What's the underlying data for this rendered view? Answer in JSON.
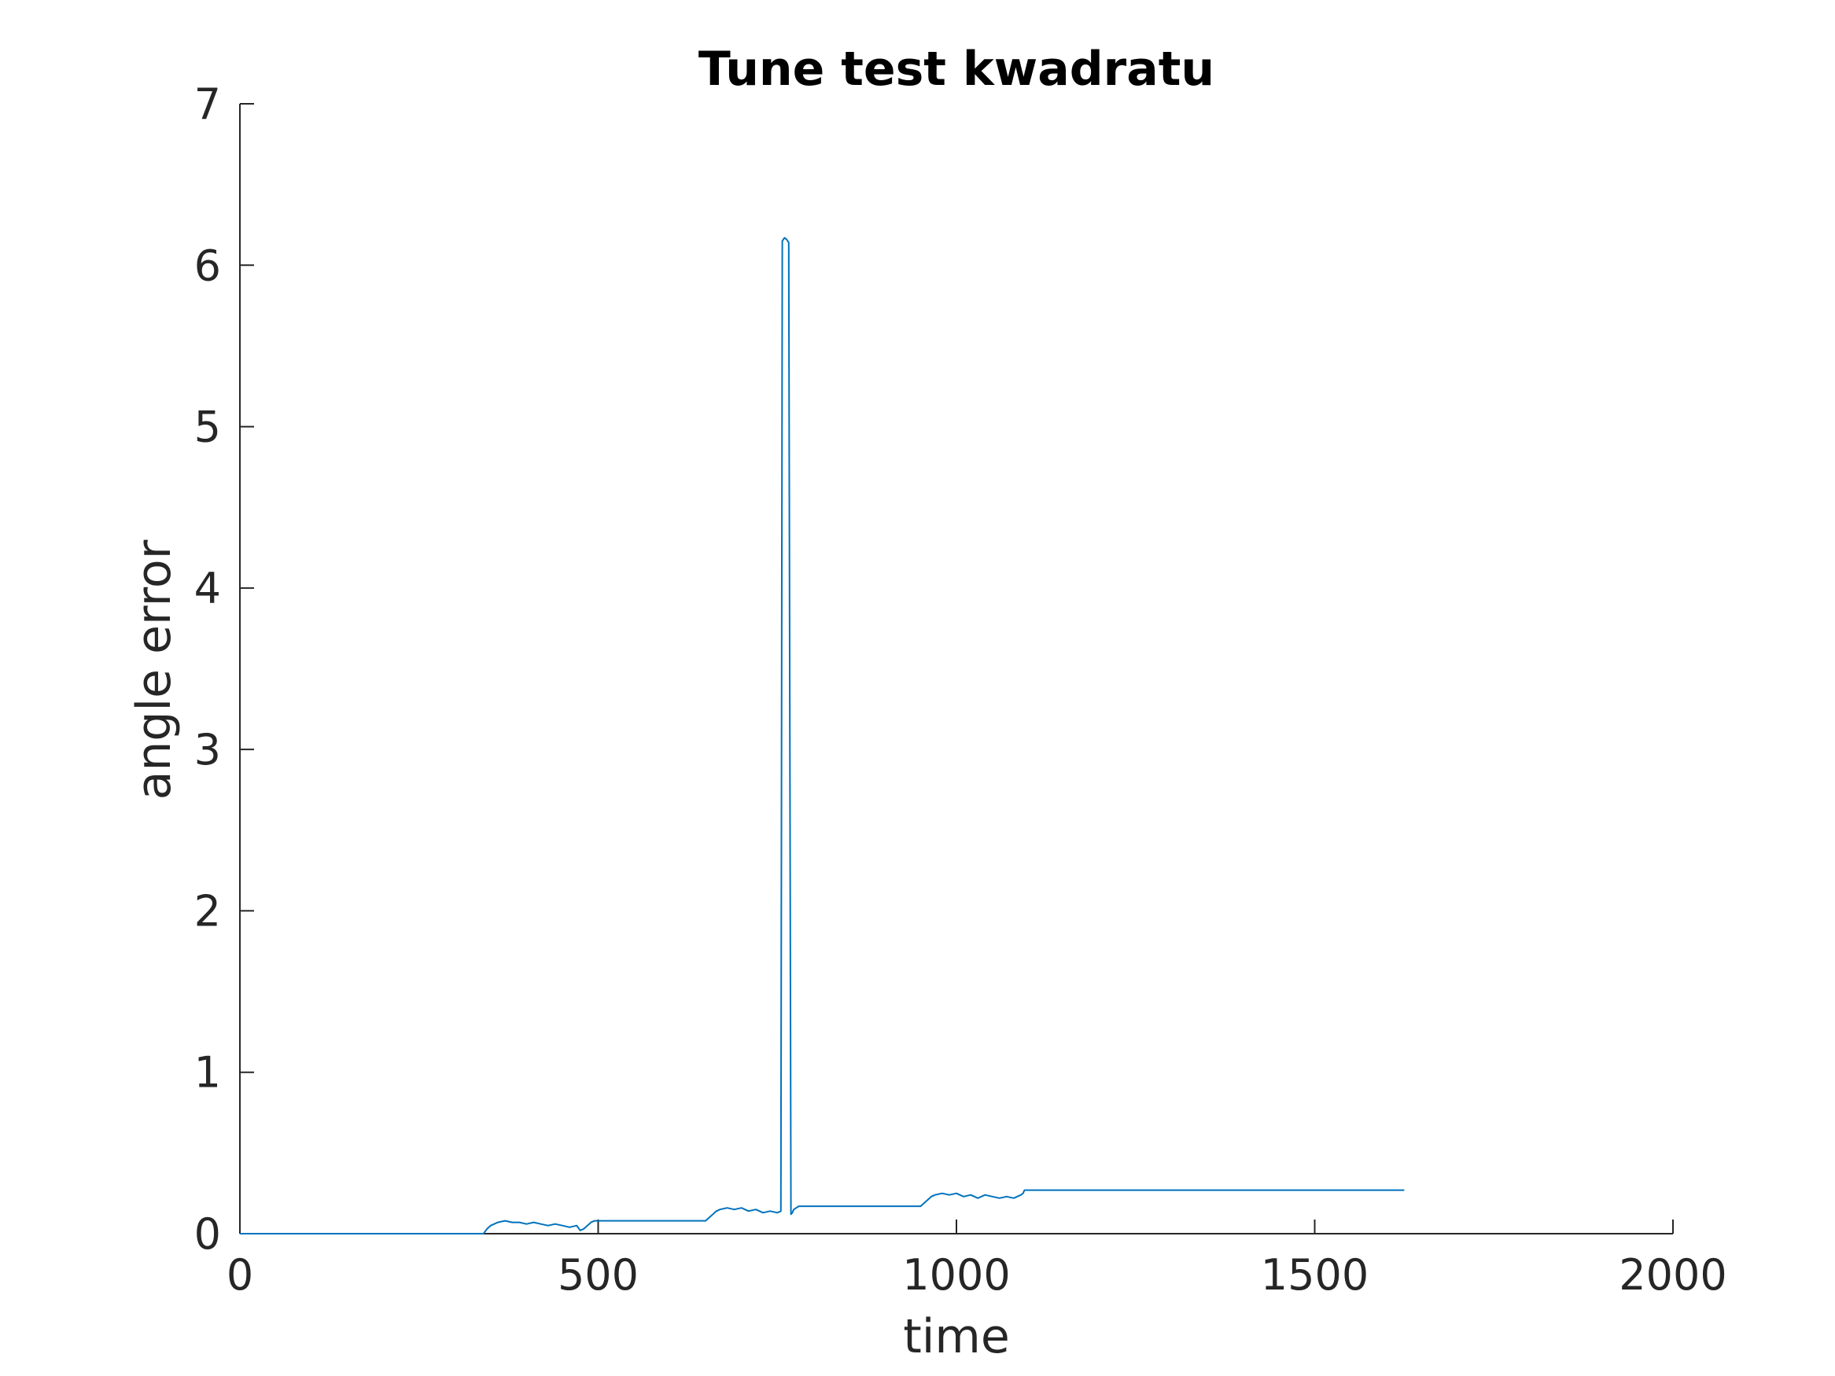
{
  "chart_data": {
    "type": "line",
    "title": "Tune test kwadratu",
    "xlabel": "time",
    "ylabel": "angle error",
    "xlim": [
      0,
      2000
    ],
    "ylim": [
      0,
      7
    ],
    "xticks": [
      0,
      500,
      1000,
      1500,
      2000
    ],
    "xtick_labels": [
      "0",
      "500",
      "1000",
      "1500",
      "2000"
    ],
    "yticks": [
      0,
      1,
      2,
      3,
      4,
      5,
      6,
      7
    ],
    "ytick_labels": [
      "0",
      "1",
      "2",
      "3",
      "4",
      "5",
      "6",
      "7"
    ],
    "grid": false,
    "legend": "none",
    "series": [
      {
        "color": "#0072BD",
        "x": [
          0,
          340,
          345,
          350,
          360,
          370,
          380,
          390,
          400,
          410,
          420,
          430,
          440,
          450,
          460,
          470,
          475,
          480,
          485,
          490,
          495,
          500,
          650,
          655,
          660,
          665,
          670,
          680,
          690,
          700,
          710,
          720,
          730,
          740,
          750,
          755,
          757,
          760,
          763,
          766,
          769,
          771,
          773,
          780,
          790,
          950,
          955,
          960,
          965,
          970,
          980,
          990,
          1000,
          1010,
          1020,
          1030,
          1040,
          1050,
          1060,
          1070,
          1080,
          1090,
          1093,
          1095,
          1100,
          1625
        ],
        "y": [
          0,
          0,
          0.03,
          0.05,
          0.07,
          0.08,
          0.07,
          0.07,
          0.06,
          0.07,
          0.06,
          0.05,
          0.06,
          0.05,
          0.04,
          0.05,
          0.02,
          0.03,
          0.05,
          0.07,
          0.08,
          0.08,
          0.08,
          0.1,
          0.12,
          0.14,
          0.15,
          0.16,
          0.15,
          0.16,
          0.14,
          0.15,
          0.13,
          0.14,
          0.13,
          0.14,
          6.15,
          6.17,
          6.16,
          6.14,
          0.12,
          0.13,
          0.15,
          0.17,
          0.17,
          0.17,
          0.19,
          0.21,
          0.23,
          0.24,
          0.25,
          0.24,
          0.25,
          0.23,
          0.24,
          0.22,
          0.24,
          0.23,
          0.22,
          0.23,
          0.22,
          0.24,
          0.25,
          0.27,
          0.27,
          0.27
        ]
      }
    ]
  }
}
